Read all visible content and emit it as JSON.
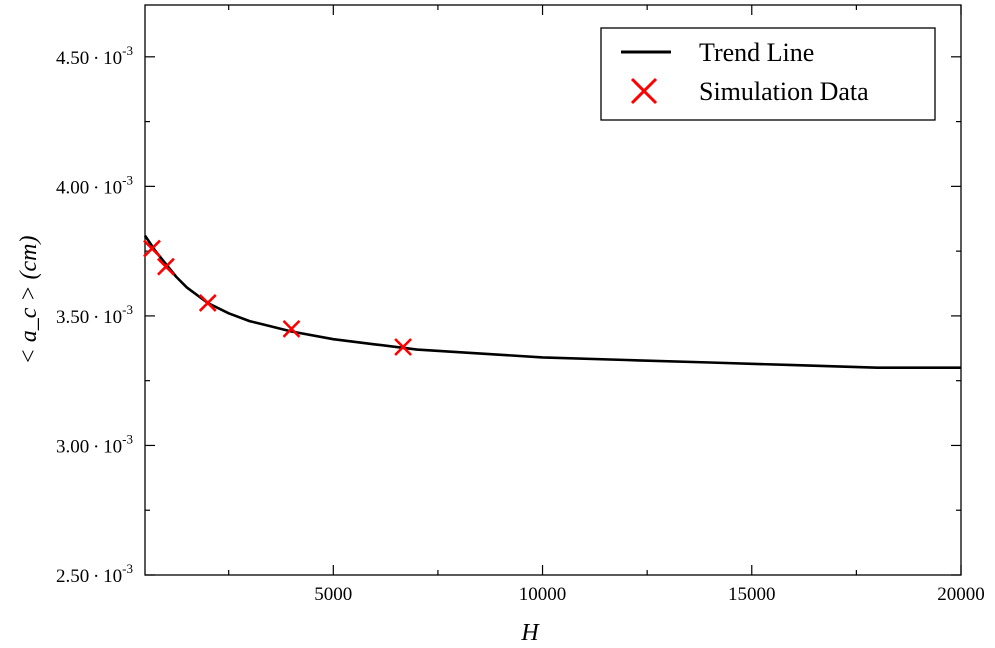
{
  "chart_data": {
    "type": "line",
    "title": "",
    "xlabel": "H",
    "ylabel": "< a_c > (cm)",
    "xlim": [
      500,
      20000
    ],
    "ylim": [
      0.0025,
      0.0047
    ],
    "x_ticks": [
      {
        "value": 5000,
        "label": "5000"
      },
      {
        "value": 10000,
        "label": "10000"
      },
      {
        "value": 15000,
        "label": "15000"
      },
      {
        "value": 20000,
        "label": "20000"
      }
    ],
    "x_minor_ticks": [
      2500,
      7500,
      12500,
      17500
    ],
    "y_ticks": [
      {
        "value": 0.0025,
        "mantissa": "2.50",
        "base": "10",
        "exp": "-3"
      },
      {
        "value": 0.003,
        "mantissa": "3.00",
        "base": "10",
        "exp": "-3"
      },
      {
        "value": 0.0035,
        "mantissa": "3.50",
        "base": "10",
        "exp": "-3"
      },
      {
        "value": 0.004,
        "mantissa": "4.00",
        "base": "10",
        "exp": "-3"
      },
      {
        "value": 0.0045,
        "mantissa": "4.50",
        "base": "10",
        "exp": "-3"
      }
    ],
    "y_minor_ticks": [
      0.00275,
      0.00325,
      0.00375,
      0.00425
    ],
    "grid": false,
    "legend_position": "top-right",
    "series": [
      {
        "name": "Trend Line",
        "style": "line",
        "color": "#000000",
        "x": [
          500,
          750,
          1000,
          1250,
          1500,
          2000,
          2500,
          3000,
          3500,
          4000,
          5000,
          6000,
          7000,
          8000,
          9000,
          10000,
          12000,
          14000,
          16000,
          18000,
          20000
        ],
        "y": [
          0.00381,
          0.00375,
          0.0037,
          0.00365,
          0.00361,
          0.00355,
          0.00351,
          0.00348,
          0.00346,
          0.00344,
          0.00341,
          0.00339,
          0.00337,
          0.00336,
          0.00335,
          0.00334,
          0.00333,
          0.00332,
          0.00331,
          0.0033,
          0.0033
        ]
      },
      {
        "name": "Simulation Data",
        "style": "x-markers",
        "color": "#ff0000",
        "x": [
          667,
          1000,
          2000,
          4000,
          6667
        ],
        "y": [
          0.00376,
          0.00369,
          0.00355,
          0.00345,
          0.00338
        ]
      }
    ]
  }
}
